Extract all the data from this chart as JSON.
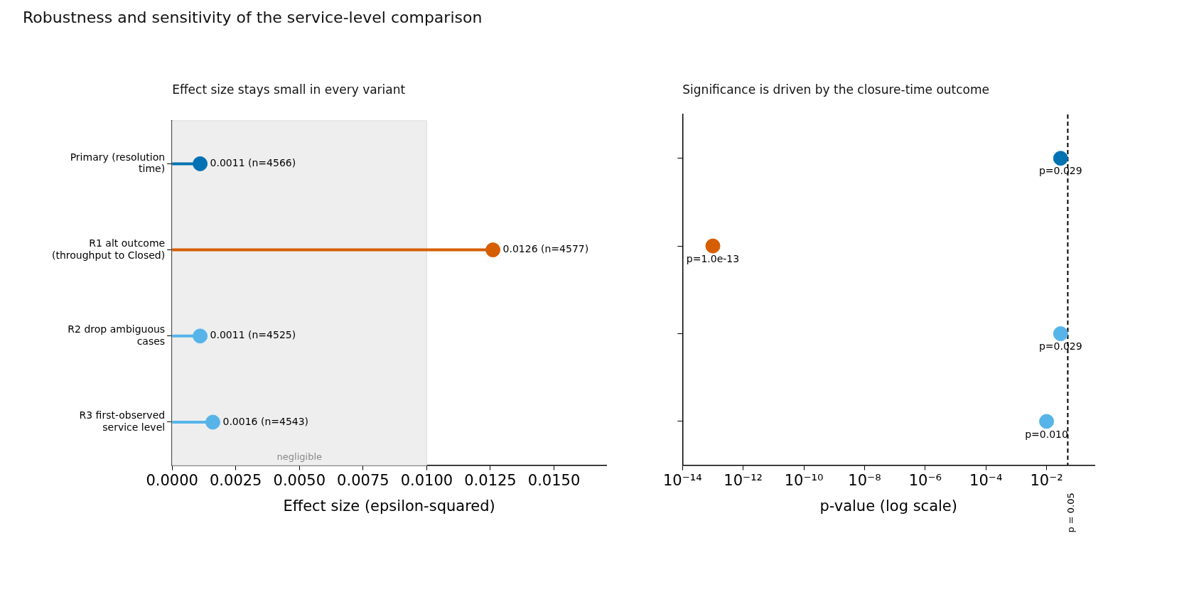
{
  "chart_data": [
    {
      "type": "lollipop",
      "title": "Robustness and sensitivity of the service-level comparison",
      "subtitle": "Effect size stays small in every variant",
      "orientation": "horizontal",
      "xlabel": "Effect size (epsilon-squared)",
      "categories": [
        "Primary (resolution time)",
        "R1 alt outcome (throughput to Closed)",
        "R2 drop ambiguous cases",
        "R3 first-observed service level"
      ],
      "values": [
        0.0011,
        0.0126,
        0.0011,
        0.0016
      ],
      "colors": [
        "#0072b2",
        "#d55e00",
        "#56b4e9",
        "#56b4e9"
      ],
      "value_labels": [
        "0.0011 (n=4566)",
        "0.0126 (n=4577)",
        "0.0011 (n=4525)",
        "0.0016 (n=4543)"
      ],
      "xlim": [
        0,
        0.01705
      ],
      "xticks": [
        {
          "value": 0,
          "label": "0.0000"
        },
        {
          "value": 0.0025,
          "label": "0.0025"
        },
        {
          "value": 0.005,
          "label": "0.0050"
        },
        {
          "value": 0.0075,
          "label": "0.0075"
        },
        {
          "value": 0.01,
          "label": "0.0100"
        },
        {
          "value": 0.0125,
          "label": "0.0125"
        },
        {
          "value": 0.015,
          "label": "0.0150"
        }
      ],
      "bands": [
        {
          "axis": "x",
          "from": 0,
          "to": 0.01,
          "label": "negligible",
          "color": "#eeeeee"
        }
      ],
      "grid": false,
      "legend": false,
      "marker": "circle"
    },
    {
      "type": "scatter",
      "subtitle": "Significance is driven by the closure-time outcome",
      "xlabel": "p-value (log scale)",
      "log": "x",
      "orientation": "horizontal",
      "categories": [
        null,
        null,
        null,
        null
      ],
      "values": [
        0.029,
        1e-13,
        0.029,
        0.01
      ],
      "colors": [
        "#0072b2",
        "#d55e00",
        "#56b4e9",
        "#56b4e9"
      ],
      "value_labels": [
        "p=0.029",
        "p=1.0e-13",
        "p=0.029",
        "p=0.010"
      ],
      "xlim": [
        1e-14,
        0.38
      ],
      "xticks": [
        {
          "value": 1e-14,
          "label": "10⁻¹⁴"
        },
        {
          "value": 1e-12,
          "label": "10⁻¹²"
        },
        {
          "value": 1e-10,
          "label": "10⁻¹⁰"
        },
        {
          "value": 1e-08,
          "label": "10⁻⁸"
        },
        {
          "value": 1e-06,
          "label": "10⁻⁶"
        },
        {
          "value": 0.0001,
          "label": "10⁻⁴"
        },
        {
          "value": 0.01,
          "label": "10⁻²"
        }
      ],
      "ref_lines": [
        {
          "axis": "x",
          "value": 0.05,
          "label": "p = 0.05",
          "line_style": "dashed",
          "color": "#000000"
        }
      ],
      "tick_labels": "x",
      "grid": false,
      "legend": false,
      "marker": "circle"
    }
  ]
}
